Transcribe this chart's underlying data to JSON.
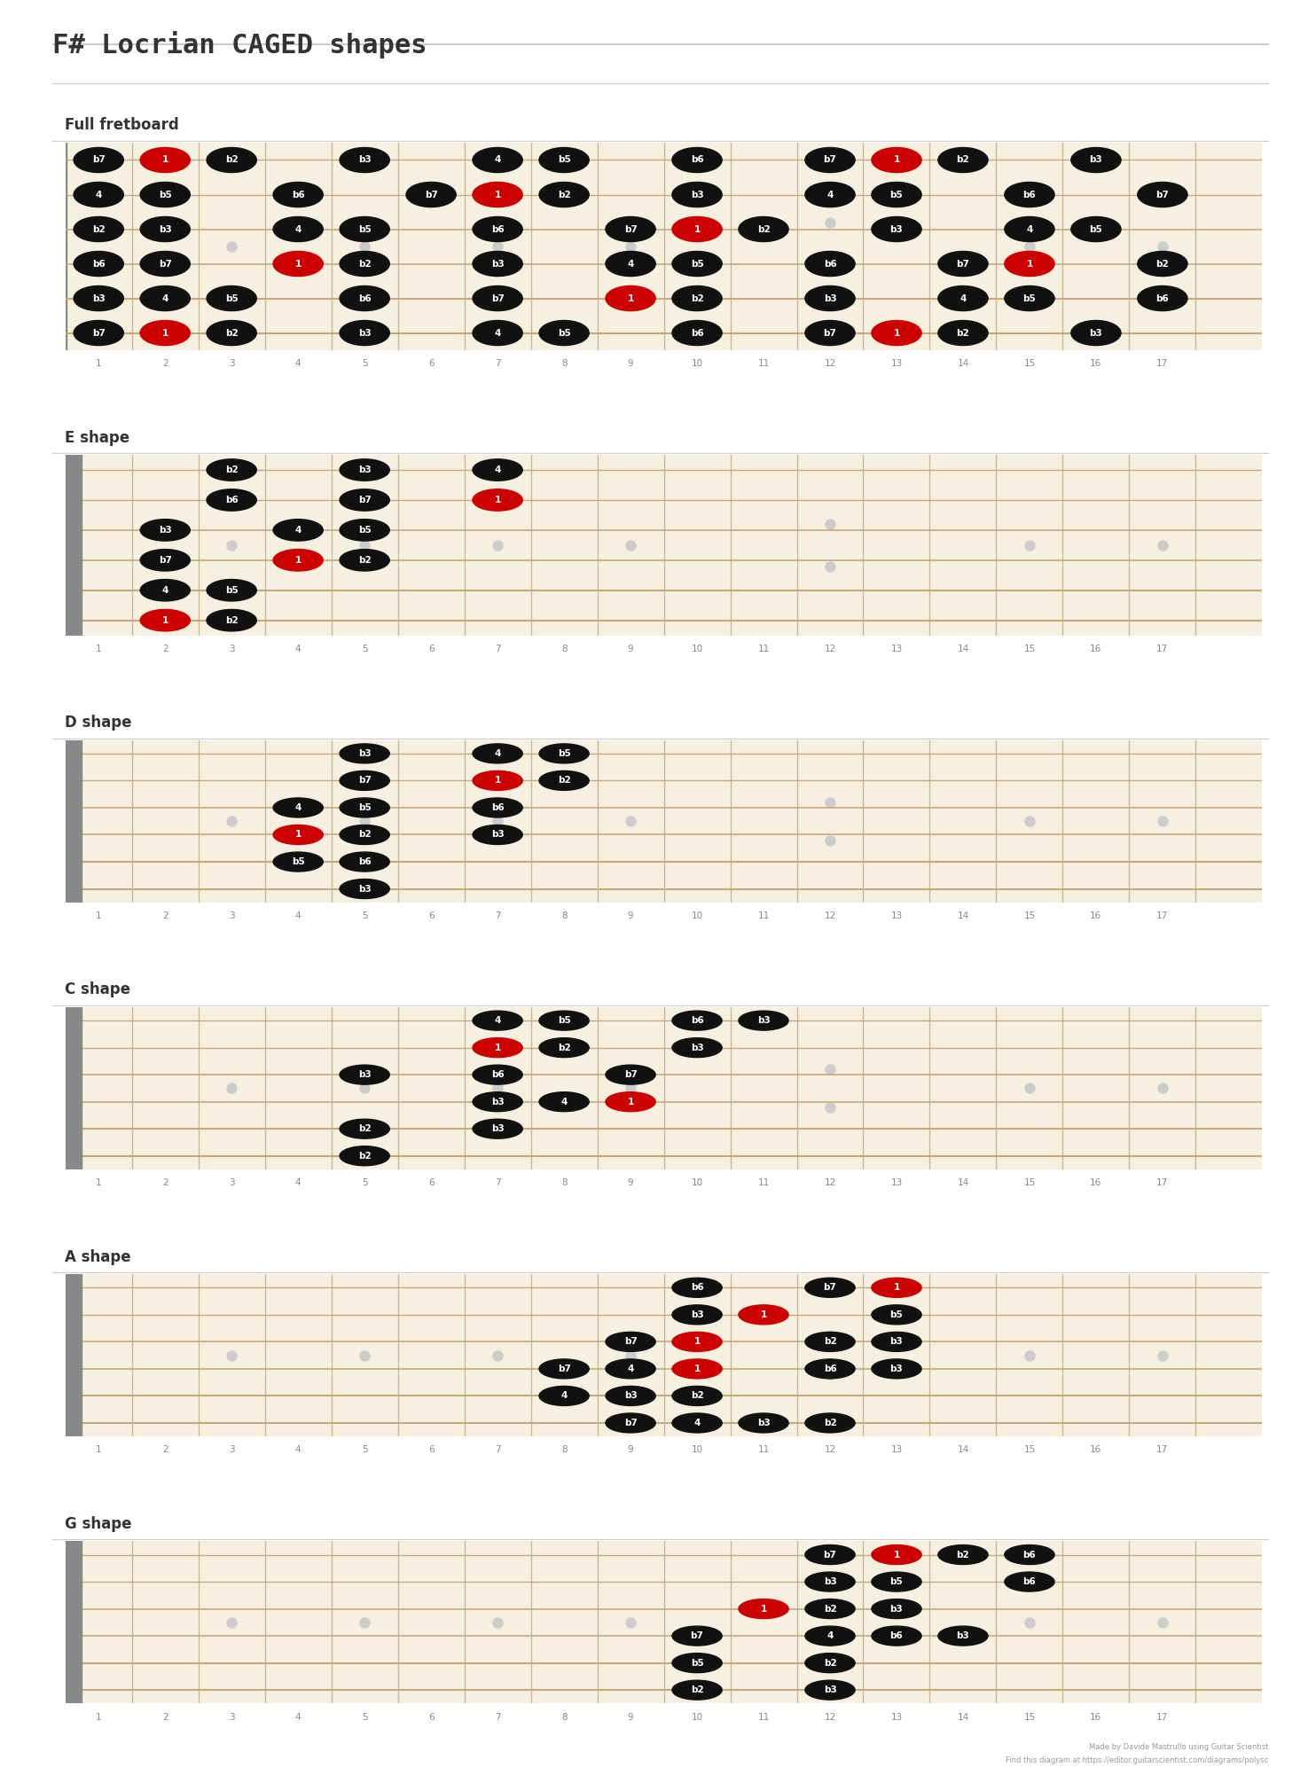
{
  "title": "F# Locrian CAGED shapes",
  "subtitle_font": "monospace",
  "bg_color": "#ffffff",
  "fretboard_bg": "#f5f0e0",
  "fret_color": "#c8b89a",
  "string_color": "#c8a87a",
  "nut_color": "#888888",
  "dot_color_normal": "#111111",
  "dot_color_root": "#cc0000",
  "dot_text_color": "#ffffff",
  "marker_color": "#cccccc",
  "num_strings": 6,
  "num_frets": 17,
  "sections": [
    {
      "name": "Full fretboard",
      "capo_fret": null,
      "notes": [
        {
          "string": 0,
          "fret": 1,
          "label": "b7",
          "root": false
        },
        {
          "string": 0,
          "fret": 2,
          "label": "1",
          "root": true
        },
        {
          "string": 0,
          "fret": 3,
          "label": "b2",
          "root": false
        },
        {
          "string": 0,
          "fret": 5,
          "label": "b3",
          "root": false
        },
        {
          "string": 0,
          "fret": 7,
          "label": "4",
          "root": false
        },
        {
          "string": 0,
          "fret": 8,
          "label": "b5",
          "root": false
        },
        {
          "string": 0,
          "fret": 10,
          "label": "b6",
          "root": false
        },
        {
          "string": 0,
          "fret": 12,
          "label": "b7",
          "root": false
        },
        {
          "string": 0,
          "fret": 13,
          "label": "1",
          "root": true
        },
        {
          "string": 0,
          "fret": 14,
          "label": "b2",
          "root": false
        },
        {
          "string": 0,
          "fret": 16,
          "label": "b3",
          "root": false
        },
        {
          "string": 1,
          "fret": 1,
          "label": "4",
          "root": false
        },
        {
          "string": 1,
          "fret": 2,
          "label": "b5",
          "root": false
        },
        {
          "string": 1,
          "fret": 4,
          "label": "b6",
          "root": false
        },
        {
          "string": 1,
          "fret": 6,
          "label": "b7",
          "root": false
        },
        {
          "string": 1,
          "fret": 7,
          "label": "1",
          "root": true
        },
        {
          "string": 1,
          "fret": 8,
          "label": "b2",
          "root": false
        },
        {
          "string": 1,
          "fret": 10,
          "label": "b3",
          "root": false
        },
        {
          "string": 1,
          "fret": 12,
          "label": "4",
          "root": false
        },
        {
          "string": 1,
          "fret": 13,
          "label": "b5",
          "root": false
        },
        {
          "string": 1,
          "fret": 15,
          "label": "b6",
          "root": false
        },
        {
          "string": 1,
          "fret": 17,
          "label": "b7",
          "root": false
        },
        {
          "string": 2,
          "fret": 1,
          "label": "b2",
          "root": false
        },
        {
          "string": 2,
          "fret": 2,
          "label": "b3",
          "root": false
        },
        {
          "string": 2,
          "fret": 4,
          "label": "4",
          "root": false
        },
        {
          "string": 2,
          "fret": 5,
          "label": "b5",
          "root": false
        },
        {
          "string": 2,
          "fret": 7,
          "label": "b6",
          "root": false
        },
        {
          "string": 2,
          "fret": 9,
          "label": "b7",
          "root": false
        },
        {
          "string": 2,
          "fret": 10,
          "label": "1",
          "root": true
        },
        {
          "string": 2,
          "fret": 11,
          "label": "b2",
          "root": false
        },
        {
          "string": 2,
          "fret": 13,
          "label": "b3",
          "root": false
        },
        {
          "string": 2,
          "fret": 15,
          "label": "4",
          "root": false
        },
        {
          "string": 2,
          "fret": 16,
          "label": "b5",
          "root": false
        },
        {
          "string": 3,
          "fret": 1,
          "label": "b6",
          "root": false
        },
        {
          "string": 3,
          "fret": 2,
          "label": "b7",
          "root": false
        },
        {
          "string": 3,
          "fret": 4,
          "label": "1",
          "root": true
        },
        {
          "string": 3,
          "fret": 5,
          "label": "b2",
          "root": false
        },
        {
          "string": 3,
          "fret": 7,
          "label": "b3",
          "root": false
        },
        {
          "string": 3,
          "fret": 9,
          "label": "4",
          "root": false
        },
        {
          "string": 3,
          "fret": 10,
          "label": "b5",
          "root": false
        },
        {
          "string": 3,
          "fret": 12,
          "label": "b6",
          "root": false
        },
        {
          "string": 3,
          "fret": 14,
          "label": "b7",
          "root": false
        },
        {
          "string": 3,
          "fret": 15,
          "label": "1",
          "root": true
        },
        {
          "string": 3,
          "fret": 17,
          "label": "b2",
          "root": false
        },
        {
          "string": 4,
          "fret": 1,
          "label": "b3",
          "root": false
        },
        {
          "string": 4,
          "fret": 2,
          "label": "4",
          "root": false
        },
        {
          "string": 4,
          "fret": 3,
          "label": "b5",
          "root": false
        },
        {
          "string": 4,
          "fret": 5,
          "label": "b6",
          "root": false
        },
        {
          "string": 4,
          "fret": 7,
          "label": "b7",
          "root": false
        },
        {
          "string": 4,
          "fret": 9,
          "label": "1",
          "root": true
        },
        {
          "string": 4,
          "fret": 10,
          "label": "b2",
          "root": false
        },
        {
          "string": 4,
          "fret": 12,
          "label": "b3",
          "root": false
        },
        {
          "string": 4,
          "fret": 14,
          "label": "4",
          "root": false
        },
        {
          "string": 4,
          "fret": 15,
          "label": "b5",
          "root": false
        },
        {
          "string": 4,
          "fret": 17,
          "label": "b6",
          "root": false
        },
        {
          "string": 5,
          "fret": 1,
          "label": "b7",
          "root": false
        },
        {
          "string": 5,
          "fret": 2,
          "label": "1",
          "root": true
        },
        {
          "string": 5,
          "fret": 3,
          "label": "b2",
          "root": false
        },
        {
          "string": 5,
          "fret": 5,
          "label": "b3",
          "root": false
        },
        {
          "string": 5,
          "fret": 7,
          "label": "4",
          "root": false
        },
        {
          "string": 5,
          "fret": 8,
          "label": "b5",
          "root": false
        },
        {
          "string": 5,
          "fret": 10,
          "label": "b6",
          "root": false
        },
        {
          "string": 5,
          "fret": 12,
          "label": "b7",
          "root": false
        },
        {
          "string": 5,
          "fret": 13,
          "label": "1",
          "root": true
        },
        {
          "string": 5,
          "fret": 14,
          "label": "b2",
          "root": false
        },
        {
          "string": 5,
          "fret": 16,
          "label": "b3",
          "root": false
        }
      ]
    },
    {
      "name": "E shape",
      "capo_fret": 1,
      "notes": [
        {
          "string": 0,
          "fret": 3,
          "label": "b2",
          "root": false
        },
        {
          "string": 0,
          "fret": 5,
          "label": "b3",
          "root": false
        },
        {
          "string": 0,
          "fret": 7,
          "label": "4",
          "root": false
        },
        {
          "string": 1,
          "fret": 3,
          "label": "b6",
          "root": false
        },
        {
          "string": 1,
          "fret": 5,
          "label": "b7",
          "root": false
        },
        {
          "string": 1,
          "fret": 7,
          "label": "1",
          "root": true
        },
        {
          "string": 2,
          "fret": 2,
          "label": "b3",
          "root": false
        },
        {
          "string": 2,
          "fret": 4,
          "label": "4",
          "root": false
        },
        {
          "string": 2,
          "fret": 5,
          "label": "b5",
          "root": false
        },
        {
          "string": 3,
          "fret": 2,
          "label": "b7",
          "root": false
        },
        {
          "string": 3,
          "fret": 4,
          "label": "1",
          "root": true
        },
        {
          "string": 3,
          "fret": 5,
          "label": "b2",
          "root": false
        },
        {
          "string": 4,
          "fret": 2,
          "label": "4",
          "root": false
        },
        {
          "string": 4,
          "fret": 3,
          "label": "b5",
          "root": false
        },
        {
          "string": 5,
          "fret": 2,
          "label": "1",
          "root": true
        },
        {
          "string": 5,
          "fret": 3,
          "label": "b2",
          "root": false
        }
      ]
    },
    {
      "name": "D shape",
      "capo_fret": 1,
      "notes": [
        {
          "string": 0,
          "fret": 5,
          "label": "b3",
          "root": false
        },
        {
          "string": 0,
          "fret": 7,
          "label": "4",
          "root": false
        },
        {
          "string": 0,
          "fret": 8,
          "label": "b5",
          "root": false
        },
        {
          "string": 1,
          "fret": 5,
          "label": "b7",
          "root": false
        },
        {
          "string": 1,
          "fret": 7,
          "label": "1",
          "root": true
        },
        {
          "string": 1,
          "fret": 8,
          "label": "b2",
          "root": false
        },
        {
          "string": 2,
          "fret": 4,
          "label": "4",
          "root": false
        },
        {
          "string": 2,
          "fret": 5,
          "label": "b5",
          "root": false
        },
        {
          "string": 2,
          "fret": 7,
          "label": "b6",
          "root": false
        },
        {
          "string": 3,
          "fret": 4,
          "label": "1",
          "root": true
        },
        {
          "string": 3,
          "fret": 5,
          "label": "b2",
          "root": false
        },
        {
          "string": 3,
          "fret": 7,
          "label": "b3",
          "root": false
        },
        {
          "string": 4,
          "fret": 4,
          "label": "b5",
          "root": false
        },
        {
          "string": 4,
          "fret": 5,
          "label": "b6",
          "root": false
        },
        {
          "string": 5,
          "fret": 5,
          "label": "b3",
          "root": false
        }
      ]
    },
    {
      "name": "C shape",
      "capo_fret": 1,
      "notes": [
        {
          "string": 0,
          "fret": 7,
          "label": "4",
          "root": false
        },
        {
          "string": 0,
          "fret": 8,
          "label": "b5",
          "root": false
        },
        {
          "string": 0,
          "fret": 10,
          "label": "b6",
          "root": false
        },
        {
          "string": 0,
          "fret": 11,
          "label": "b3",
          "root": false
        },
        {
          "string": 1,
          "fret": 7,
          "label": "1",
          "root": true
        },
        {
          "string": 1,
          "fret": 8,
          "label": "b2",
          "root": false
        },
        {
          "string": 1,
          "fret": 10,
          "label": "b3",
          "root": false
        },
        {
          "string": 2,
          "fret": 5,
          "label": "b3",
          "root": false
        },
        {
          "string": 2,
          "fret": 7,
          "label": "b6",
          "root": false
        },
        {
          "string": 2,
          "fret": 9,
          "label": "b7",
          "root": false
        },
        {
          "string": 3,
          "fret": 7,
          "label": "b3",
          "root": false
        },
        {
          "string": 3,
          "fret": 8,
          "label": "4",
          "root": false
        },
        {
          "string": 3,
          "fret": 9,
          "label": "1",
          "root": true
        },
        {
          "string": 4,
          "fret": 5,
          "label": "b2",
          "root": false
        },
        {
          "string": 4,
          "fret": 7,
          "label": "b3",
          "root": false
        },
        {
          "string": 5,
          "fret": 5,
          "label": "b2",
          "root": false
        }
      ]
    },
    {
      "name": "A shape",
      "capo_fret": 1,
      "notes": [
        {
          "string": 0,
          "fret": 10,
          "label": "b6",
          "root": false
        },
        {
          "string": 0,
          "fret": 12,
          "label": "b7",
          "root": false
        },
        {
          "string": 0,
          "fret": 13,
          "label": "1",
          "root": true
        },
        {
          "string": 1,
          "fret": 10,
          "label": "b3",
          "root": false
        },
        {
          "string": 1,
          "fret": 11,
          "label": "1",
          "root": true
        },
        {
          "string": 1,
          "fret": 13,
          "label": "b5",
          "root": false
        },
        {
          "string": 2,
          "fret": 9,
          "label": "b7",
          "root": false
        },
        {
          "string": 2,
          "fret": 10,
          "label": "1",
          "root": true
        },
        {
          "string": 2,
          "fret": 12,
          "label": "b2",
          "root": false
        },
        {
          "string": 2,
          "fret": 13,
          "label": "b3",
          "root": false
        },
        {
          "string": 3,
          "fret": 8,
          "label": "b7",
          "root": false
        },
        {
          "string": 3,
          "fret": 9,
          "label": "4",
          "root": false
        },
        {
          "string": 3,
          "fret": 10,
          "label": "1",
          "root": true
        },
        {
          "string": 3,
          "fret": 12,
          "label": "b6",
          "root": false
        },
        {
          "string": 3,
          "fret": 13,
          "label": "b3",
          "root": false
        },
        {
          "string": 4,
          "fret": 8,
          "label": "4",
          "root": false
        },
        {
          "string": 4,
          "fret": 9,
          "label": "b3",
          "root": false
        },
        {
          "string": 4,
          "fret": 10,
          "label": "b2",
          "root": false
        },
        {
          "string": 5,
          "fret": 9,
          "label": "b7",
          "root": false
        },
        {
          "string": 5,
          "fret": 10,
          "label": "4",
          "root": false
        },
        {
          "string": 5,
          "fret": 11,
          "label": "b3",
          "root": false
        },
        {
          "string": 5,
          "fret": 12,
          "label": "b2",
          "root": false
        }
      ]
    },
    {
      "name": "G shape",
      "capo_fret": 1,
      "notes": [
        {
          "string": 0,
          "fret": 12,
          "label": "b7",
          "root": false
        },
        {
          "string": 0,
          "fret": 13,
          "label": "1",
          "root": true
        },
        {
          "string": 0,
          "fret": 14,
          "label": "b2",
          "root": false
        },
        {
          "string": 0,
          "fret": 15,
          "label": "b6",
          "root": false
        },
        {
          "string": 1,
          "fret": 12,
          "label": "b3",
          "root": false
        },
        {
          "string": 1,
          "fret": 13,
          "label": "b5",
          "root": false
        },
        {
          "string": 1,
          "fret": 15,
          "label": "b6",
          "root": false
        },
        {
          "string": 2,
          "fret": 11,
          "label": "1",
          "root": true
        },
        {
          "string": 2,
          "fret": 12,
          "label": "b2",
          "root": false
        },
        {
          "string": 2,
          "fret": 13,
          "label": "b3",
          "root": false
        },
        {
          "string": 3,
          "fret": 10,
          "label": "b7",
          "root": false
        },
        {
          "string": 3,
          "fret": 12,
          "label": "4",
          "root": false
        },
        {
          "string": 3,
          "fret": 13,
          "label": "b6",
          "root": false
        },
        {
          "string": 3,
          "fret": 14,
          "label": "b3",
          "root": false
        },
        {
          "string": 4,
          "fret": 10,
          "label": "b5",
          "root": false
        },
        {
          "string": 4,
          "fret": 12,
          "label": "b2",
          "root": false
        },
        {
          "string": 5,
          "fret": 10,
          "label": "b2",
          "root": false
        },
        {
          "string": 5,
          "fret": 12,
          "label": "b3",
          "root": false
        }
      ]
    }
  ],
  "position_markers": [
    3,
    5,
    7,
    9,
    12,
    15,
    17
  ],
  "footer_text": "Made by Davide Mastrullo using Guitar Scientist\nFind this diagram at https://editor.guitarscientist.com/diagrams/polysc"
}
